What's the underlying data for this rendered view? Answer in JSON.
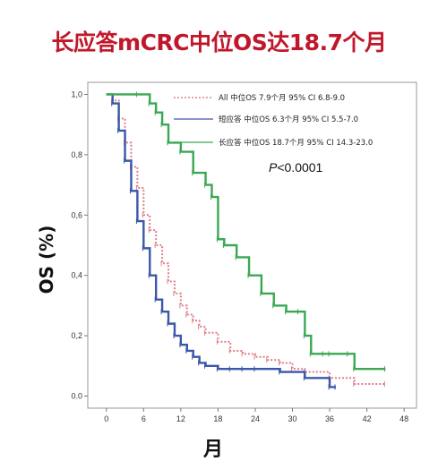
{
  "chart_data": {
    "type": "line",
    "title": "长应答mCRC中位OS达18.7个月",
    "xlabel": "月",
    "ylabel": "OS (%)",
    "xlim": [
      -3,
      50
    ],
    "ylim": [
      -0.04,
      1.04
    ],
    "x_ticks": [
      "0",
      "6",
      "12",
      "18",
      "24",
      "30",
      "36",
      "42",
      "48"
    ],
    "x_tick_values": [
      0,
      6,
      12,
      18,
      24,
      30,
      36,
      42,
      48
    ],
    "y_ticks": [
      "0.0",
      "0,2",
      "0,4",
      "0,6",
      "0,8",
      "1,0"
    ],
    "y_tick_values": [
      0,
      0.2,
      0.4,
      0.6,
      0.8,
      1.0
    ],
    "p_value": "P<0.0001",
    "series": [
      {
        "name": "All 中位OS 7.9个月 95% CI 6.8-9.0",
        "color": "#e0808a",
        "style": "dotted",
        "x": [
          0,
          1,
          2,
          3,
          4,
          5,
          6,
          7,
          8,
          9,
          10,
          11,
          12,
          13,
          14,
          15,
          16,
          18,
          20,
          22,
          24,
          26,
          28,
          30,
          32,
          36,
          40,
          45
        ],
        "y": [
          1.0,
          0.98,
          0.92,
          0.84,
          0.76,
          0.69,
          0.6,
          0.55,
          0.5,
          0.44,
          0.38,
          0.34,
          0.3,
          0.27,
          0.25,
          0.23,
          0.21,
          0.18,
          0.15,
          0.14,
          0.13,
          0.12,
          0.11,
          0.09,
          0.08,
          0.06,
          0.04,
          0.04
        ]
      },
      {
        "name": "短应答 中位OS 6.3个月 95% CI 5.5-7.0",
        "color": "#3b58a8",
        "style": "solid",
        "x": [
          0,
          1,
          2,
          3,
          4,
          5,
          6,
          7,
          8,
          9,
          10,
          11,
          12,
          13,
          14,
          15,
          16,
          18,
          20,
          22,
          24,
          28,
          32,
          36,
          37
        ],
        "y": [
          1.0,
          0.97,
          0.88,
          0.78,
          0.68,
          0.58,
          0.49,
          0.4,
          0.32,
          0.28,
          0.24,
          0.2,
          0.17,
          0.15,
          0.13,
          0.11,
          0.1,
          0.09,
          0.09,
          0.09,
          0.09,
          0.08,
          0.06,
          0.03,
          0.03
        ]
      },
      {
        "name": "长应答 中位OS 18.7个月 95% CI 14.3-23.0",
        "color": "#3aa853",
        "style": "solid",
        "x": [
          0,
          5,
          7,
          8,
          9,
          10,
          12,
          14,
          16,
          17,
          18,
          19,
          21,
          23,
          25,
          27,
          29,
          31,
          32,
          33,
          35,
          36,
          39,
          40,
          45
        ],
        "y": [
          1.0,
          1.0,
          0.97,
          0.94,
          0.9,
          0.84,
          0.81,
          0.74,
          0.7,
          0.66,
          0.52,
          0.5,
          0.46,
          0.4,
          0.34,
          0.3,
          0.28,
          0.28,
          0.2,
          0.14,
          0.14,
          0.14,
          0.14,
          0.09,
          0.09
        ]
      }
    ]
  }
}
